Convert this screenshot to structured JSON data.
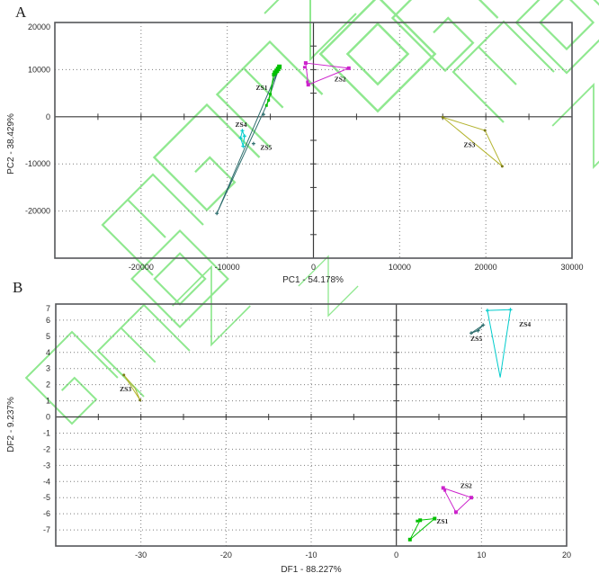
{
  "page": {
    "background": "#ffffff",
    "watermark_color": "#8fe88f"
  },
  "chart_data": [
    {
      "type": "scatter",
      "panel_label": "A",
      "xlabel": "PC1 - 54.178%",
      "ylabel": "PC2 - 38.429%",
      "xlim": [
        -30000,
        30000
      ],
      "ylim": [
        -30000,
        20000
      ],
      "xticks": [
        -20000,
        -10000,
        0,
        10000,
        20000,
        30000
      ],
      "yticks": [
        20000,
        10000,
        0,
        -10000,
        -20000
      ],
      "grid_x": [
        -20000,
        -10000,
        10000,
        20000
      ],
      "grid_y": [
        10000,
        -10000,
        -20000
      ],
      "minor_tick_step": {
        "x": 5000,
        "y": 5000
      },
      "grid": true,
      "groups": [
        {
          "name": "ZS5",
          "color": "#2e6e6e",
          "marker": "plus",
          "hull": [
            [
              -3950,
              10600
            ],
            [
              -5450,
              2400
            ],
            [
              -11200,
              -20500
            ]
          ],
          "points": [
            [
              -5800,
              500
            ],
            [
              -6950,
              -5700
            ],
            [
              -11200,
              -20500
            ]
          ],
          "label_pos": [
            -5500,
            -7000
          ]
        },
        {
          "name": "ZS1",
          "color": "#00c000",
          "marker": "square",
          "line": true,
          "points": [
            [
              -3950,
              10600,
              5
            ],
            [
              -4100,
              10150,
              5
            ],
            [
              -4250,
              9750,
              5
            ],
            [
              -4450,
              9350,
              5
            ],
            [
              -4600,
              8950,
              4
            ],
            [
              -5000,
              4800,
              3
            ],
            [
              -5200,
              3500,
              3
            ],
            [
              -5450,
              2400,
              3
            ]
          ],
          "label_pos": [
            -6000,
            5700
          ]
        },
        {
          "name": "ZS2",
          "color": "#cc22cc",
          "marker": "square",
          "hull": [
            [
              -900,
              11400
            ],
            [
              4100,
              10300
            ],
            [
              -600,
              6800
            ]
          ],
          "points": [
            [
              -900,
              11400
            ],
            [
              4100,
              10300
            ],
            [
              -600,
              6800
            ],
            [
              -1050,
              10500,
              3
            ],
            [
              -700,
              7400,
              3
            ]
          ],
          "label_pos": [
            3100,
            7500
          ]
        },
        {
          "name": "ZS3",
          "color": "#b3b32e",
          "marker": "dot",
          "hull": [
            [
              15000,
              -100
            ],
            [
              19900,
              -2900
            ],
            [
              21900,
              -10500
            ]
          ],
          "points": [
            [
              15000,
              -100
            ],
            [
              19900,
              -2900
            ],
            [
              21900,
              -10500
            ]
          ],
          "label_pos": [
            18100,
            -6400
          ]
        },
        {
          "name": "ZS4",
          "color": "#00cccc",
          "marker": "plus",
          "hull": [
            [
              -8250,
              -2950
            ],
            [
              -8000,
              -4100
            ],
            [
              -8150,
              -6250
            ],
            [
              -8450,
              -4500
            ]
          ],
          "points": [
            [
              -8250,
              -2950
            ],
            [
              -8000,
              -4100
            ],
            [
              -8150,
              -6250
            ],
            [
              -8450,
              -4500
            ]
          ],
          "label_pos": [
            -8400,
            -2100
          ]
        }
      ]
    },
    {
      "type": "scatter",
      "panel_label": "B",
      "xlabel": "DF1 - 88.227%",
      "ylabel": "DF2 - 9.237%",
      "xlim": [
        -40,
        20
      ],
      "ylim": [
        -8,
        7
      ],
      "xticks": [
        -30,
        -20,
        -10,
        0,
        10,
        20
      ],
      "yticks": [
        7,
        6,
        5,
        4,
        3,
        2,
        1,
        0,
        -1,
        -2,
        -3,
        -4,
        -5,
        -6,
        -7
      ],
      "grid_x": [
        -30,
        -20,
        -10,
        10
      ],
      "grid_y": [
        6,
        5,
        4,
        3,
        2,
        1,
        -1,
        -2,
        -3,
        -4,
        -5,
        -6,
        -7
      ],
      "minor_tick_step": {
        "x": 5,
        "y": 1
      },
      "grid": true,
      "groups": [
        {
          "name": "ZS3",
          "color": "#b3b32e",
          "marker": "dot",
          "hull": [
            [
              -32,
              2.6
            ],
            [
              -30.1,
              1.05
            ],
            [
              -30.7,
              1.8
            ]
          ],
          "points": [
            [
              -32,
              2.6
            ],
            [
              -30.1,
              1.05
            ]
          ],
          "label_pos": [
            -31.8,
            1.6
          ]
        },
        {
          "name": "ZS4",
          "color": "#00cccc",
          "marker": "plus",
          "hull": [
            [
              10.7,
              6.6
            ],
            [
              13.4,
              6.65
            ],
            [
              12.2,
              2.45
            ]
          ],
          "points": [
            [
              10.7,
              6.6
            ],
            [
              13.4,
              6.65
            ]
          ],
          "label_pos": [
            15.1,
            5.6
          ]
        },
        {
          "name": "ZS5",
          "color": "#2e6e6e",
          "marker": "plus",
          "hull": [
            [
              10.2,
              5.7
            ],
            [
              8.8,
              5.2
            ],
            [
              9.6,
              5.35
            ]
          ],
          "points": [
            [
              10.2,
              5.7
            ],
            [
              8.8,
              5.2
            ],
            [
              9.6,
              5.35
            ]
          ],
          "label_pos": [
            9.4,
            4.7
          ]
        },
        {
          "name": "ZS2",
          "color": "#cc22cc",
          "marker": "square",
          "hull": [
            [
              5.5,
              -4.4
            ],
            [
              8.8,
              -5.0
            ],
            [
              7.0,
              -5.9
            ]
          ],
          "points": [
            [
              5.5,
              -4.4
            ],
            [
              8.8,
              -5.0
            ],
            [
              7.0,
              -5.9
            ],
            [
              5.7,
              -4.55,
              3
            ]
          ],
          "label_pos": [
            8.2,
            -4.4
          ]
        },
        {
          "name": "ZS1",
          "color": "#00c000",
          "marker": "square",
          "hull": [
            [
              2.8,
              -6.4
            ],
            [
              4.5,
              -6.3
            ],
            [
              1.6,
              -7.6
            ]
          ],
          "points": [
            [
              2.8,
              -6.4
            ],
            [
              4.5,
              -6.3
            ],
            [
              1.6,
              -7.6
            ],
            [
              2.45,
              -6.45,
              3
            ]
          ],
          "label_pos": [
            5.4,
            -6.6
          ]
        }
      ]
    }
  ]
}
